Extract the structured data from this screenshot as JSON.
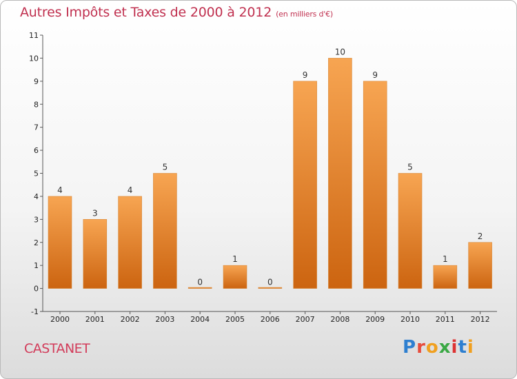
{
  "header": {
    "title": "Autres Impôts et Taxes de 2000 à 2012",
    "subtitle": "(en milliers d'€)"
  },
  "footer": {
    "commune": "CASTANET",
    "logo": [
      "P",
      "r",
      "o",
      "x",
      "i",
      "t",
      "i"
    ]
  },
  "colors": {
    "bar_light": "#f7a552",
    "bar_dark": "#cc6410",
    "title": "#c0304f"
  },
  "chart_data": {
    "type": "bar",
    "title": "Autres Impôts et Taxes de 2000 à 2012",
    "subtitle": "(en milliers d'€)",
    "categories": [
      "2000",
      "2001",
      "2002",
      "2003",
      "2004",
      "2005",
      "2006",
      "2007",
      "2008",
      "2009",
      "2010",
      "2011",
      "2012"
    ],
    "values": [
      4,
      3,
      4,
      5,
      0,
      1,
      0,
      9,
      10,
      9,
      5,
      1,
      2
    ],
    "value_labels": [
      "4",
      "3",
      "4",
      "5",
      "0",
      "1",
      "0",
      "9",
      "10",
      "9",
      "5",
      "1",
      "2"
    ],
    "yticks": [
      "-1",
      "0",
      "1",
      "2",
      "3",
      "4",
      "5",
      "6",
      "7",
      "8",
      "9",
      "10",
      "11"
    ],
    "ylim": [
      -1,
      11
    ],
    "grid": false,
    "legend": "none"
  }
}
